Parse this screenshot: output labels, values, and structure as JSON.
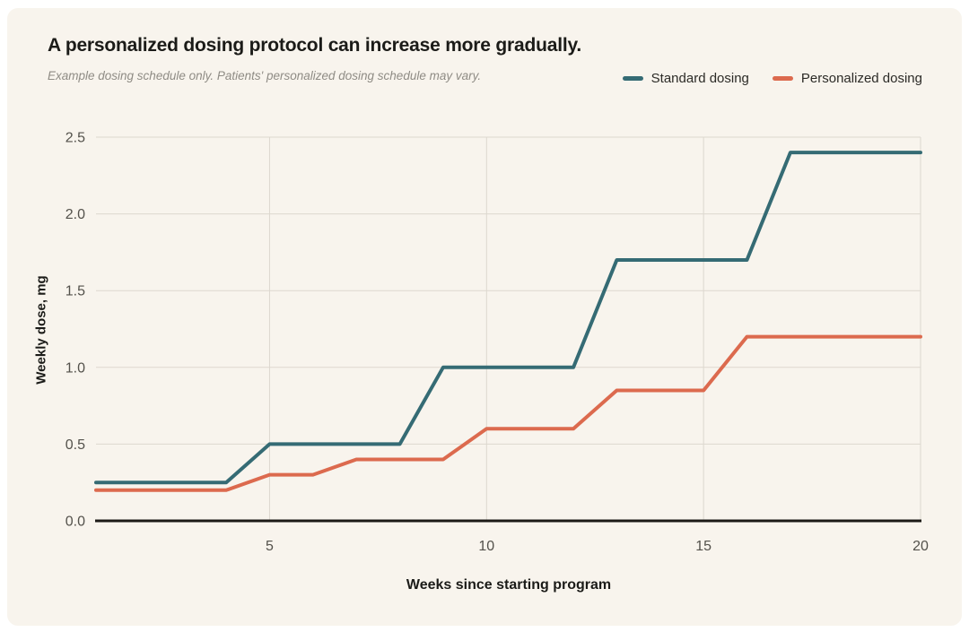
{
  "card": {
    "title": "A personalized dosing protocol can increase more gradually.",
    "subtitle": "Example dosing schedule only. Patients' personalized dosing schedule may vary."
  },
  "legend": [
    {
      "label": "Standard dosing",
      "color_key": "standard"
    },
    {
      "label": "Personalized dosing",
      "color_key": "personalized"
    }
  ],
  "colors": {
    "page": "#ffffff",
    "card_background": "#f8f4ed",
    "standard": "#356b74",
    "personalized": "#dc6a4e",
    "grid": "#ddd8cf",
    "axis": "#1c1a16",
    "tick_text": "#53514b",
    "title_text": "#1b1b18",
    "subtitle_text": "#8f8c85"
  },
  "chart_data": {
    "type": "line",
    "title": "A personalized dosing protocol can increase more gradually.",
    "xlabel": "Weeks since starting program",
    "ylabel": "Weekly dose, mg",
    "xlim": [
      1,
      20
    ],
    "ylim": [
      0,
      2.5
    ],
    "x_ticks": [
      5,
      10,
      15,
      20
    ],
    "y_ticks": [
      0.0,
      0.5,
      1.0,
      1.5,
      2.0,
      2.5
    ],
    "grid": true,
    "legend_position": "top-right",
    "series": [
      {
        "name": "Standard dosing",
        "color": "#356b74",
        "points": [
          [
            1,
            0.25
          ],
          [
            4,
            0.25
          ],
          [
            5,
            0.5
          ],
          [
            8,
            0.5
          ],
          [
            9,
            1.0
          ],
          [
            12,
            1.0
          ],
          [
            13,
            1.7
          ],
          [
            16,
            1.7
          ],
          [
            17,
            2.4
          ],
          [
            20,
            2.4
          ]
        ]
      },
      {
        "name": "Personalized dosing",
        "color": "#dc6a4e",
        "points": [
          [
            1,
            0.2
          ],
          [
            4,
            0.2
          ],
          [
            5,
            0.3
          ],
          [
            6,
            0.3
          ],
          [
            7,
            0.4
          ],
          [
            9,
            0.4
          ],
          [
            10,
            0.6
          ],
          [
            12,
            0.6
          ],
          [
            13,
            0.85
          ],
          [
            15,
            0.85
          ],
          [
            16,
            1.2
          ],
          [
            20,
            1.2
          ]
        ]
      }
    ]
  }
}
